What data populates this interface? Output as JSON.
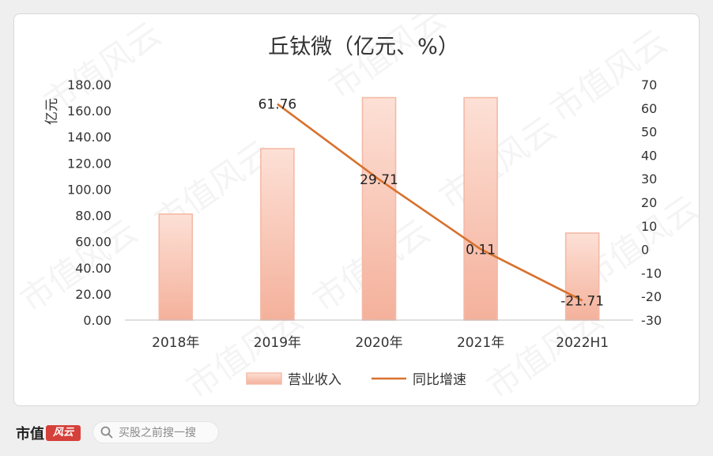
{
  "chart_data": {
    "type": "bar",
    "title": "丘钛微（亿元、%）",
    "ylabel": "亿元",
    "categories": [
      "2018年",
      "2019年",
      "2020年",
      "2021年",
      "2022H1"
    ],
    "y_ticks": [
      "180.00",
      "160.00",
      "140.00",
      "120.00",
      "100.00",
      "80.00",
      "60.00",
      "40.00",
      "20.00",
      "0.00"
    ],
    "y2_ticks": [
      "70",
      "60",
      "50",
      "40",
      "30",
      "20",
      "10",
      "0",
      "-10",
      "-20",
      "-30"
    ],
    "ylim": [
      0,
      180
    ],
    "y2lim": [
      -30,
      70
    ],
    "legend_position": "bottom",
    "grid": false,
    "series": [
      {
        "name": "营业收入",
        "type": "bar",
        "axis": "left",
        "values": [
          81.0,
          131.0,
          170.0,
          170.0,
          66.5
        ],
        "color": "#f4b9a6"
      },
      {
        "name": "同比增速",
        "type": "line",
        "axis": "right",
        "values": [
          null,
          61.76,
          29.71,
          0.11,
          -21.71
        ],
        "labels": [
          "",
          "61.76",
          "29.71",
          "0.11",
          "-21.71"
        ],
        "color": "#d8712e"
      }
    ]
  },
  "watermark": "市值风云",
  "footer": {
    "brand": "市值",
    "brand_mark": "风云",
    "search_placeholder": "买股之前搜一搜"
  }
}
